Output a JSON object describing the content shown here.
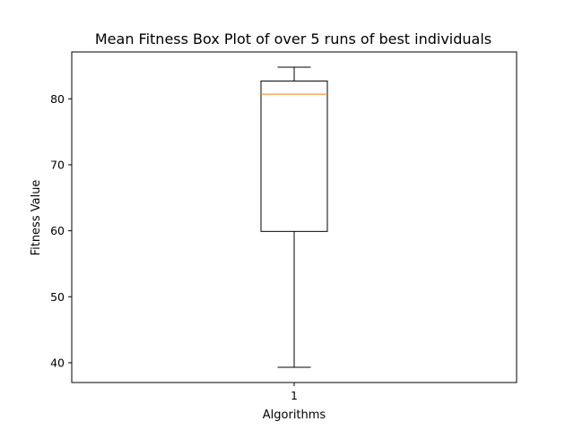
{
  "chart_data": {
    "type": "box",
    "title": "Mean Fitness Box Plot of over 5 runs of best individuals",
    "xlabel": "Algorithms",
    "ylabel": "Fitness Value",
    "categories": [
      "1"
    ],
    "boxes": [
      {
        "category": "1",
        "whisker_low": 39.3,
        "q1": 59.9,
        "median": 80.7,
        "q3": 82.7,
        "whisker_high": 84.8
      }
    ],
    "ylim": [
      37.0,
      87.1
    ],
    "yticks": [
      40,
      50,
      60,
      70,
      80
    ],
    "grid": false,
    "colors": {
      "box": "#000000",
      "median": "#ff7f0e",
      "whisker": "#000000"
    }
  }
}
